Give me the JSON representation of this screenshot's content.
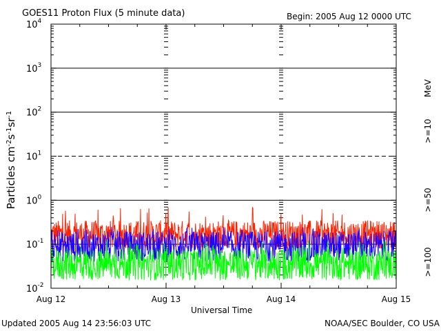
{
  "header": {
    "title": "GOES11 Proton Flux (5 minute data)",
    "begin": "Begin: 2005 Aug 12 0000 UTC"
  },
  "footer": {
    "updated": "Updated 2005 Aug 14 23:56:03 UTC",
    "source": "NOAA/SEC Boulder, CO USA"
  },
  "colors": {
    "ge10": "#ff2000",
    "ge50": "#2000ff",
    "ge100": "#00ff00",
    "axis": "#000000"
  },
  "chart_data": {
    "type": "line",
    "title": "GOES11 Proton Flux (5 minute data)",
    "xlabel": "Universal Time",
    "ylabel": "Particles cm⁻²s⁻¹sr⁻¹",
    "y_scale": "log",
    "ylim": [
      0.01,
      10000
    ],
    "y_ticks": [
      {
        "label": "10",
        "exp": "-2"
      },
      {
        "label": "10",
        "exp": "-1"
      },
      {
        "label": "10",
        "exp": "0"
      },
      {
        "label": "10",
        "exp": "1"
      },
      {
        "label": "10",
        "exp": "2"
      },
      {
        "label": "10",
        "exp": "3"
      },
      {
        "label": "10",
        "exp": "4"
      }
    ],
    "x_ticks": [
      "Aug 12",
      "Aug 13",
      "Aug 14",
      "Aug 15"
    ],
    "xlim": [
      "2005-08-12",
      "2005-08-15"
    ],
    "right_unit": "MeV",
    "series": [
      {
        "name": ">=10",
        "color": "#ff2000",
        "typical_range": [
          0.08,
          0.35
        ],
        "peak": 0.7
      },
      {
        "name": ">=50",
        "color": "#2000ff",
        "typical_range": [
          0.04,
          0.2
        ],
        "peak": 0.25
      },
      {
        "name": ">=100",
        "color": "#00ff00",
        "typical_range": [
          0.015,
          0.08
        ],
        "peak": 0.12
      }
    ],
    "grid": "horizontal at decades"
  }
}
